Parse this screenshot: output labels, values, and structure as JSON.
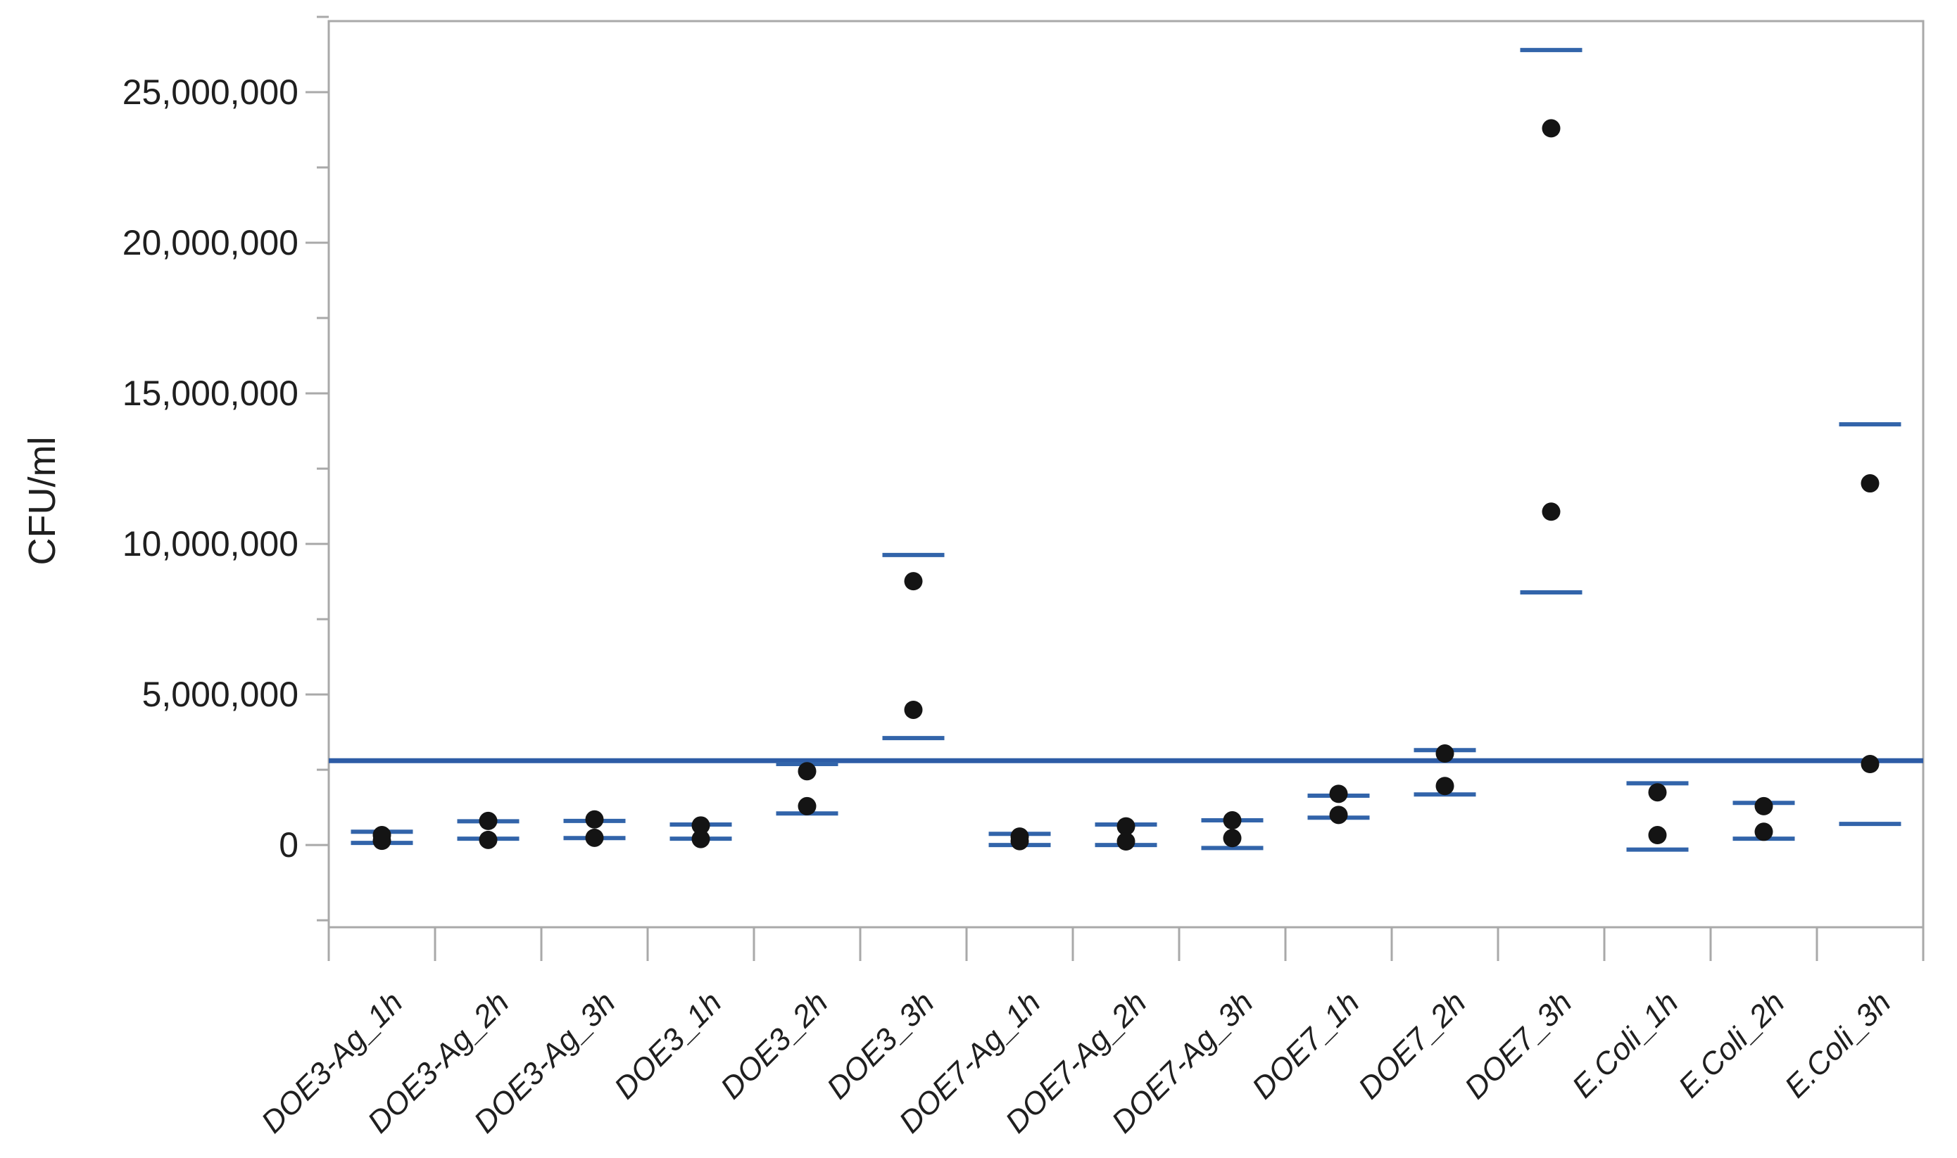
{
  "page": {
    "background": "#ffffff"
  },
  "colors": {
    "axis_gray": "#a9a9a9",
    "text": "#1f1f1f",
    "dot_black": "#141414",
    "ci_blue": "#3264aa",
    "mean_line_blue": "#2d5ca6",
    "plot_background": "#ffffff"
  },
  "chart_data": {
    "type": "scatter",
    "title": "",
    "xlabel": "",
    "ylabel": "CFU/ml",
    "grid": false,
    "legend_position": "none",
    "ylim": [
      -2730000,
      27360000
    ],
    "y_major_ticks": [
      0,
      5000000,
      10000000,
      15000000,
      20000000,
      25000000
    ],
    "y_major_tick_labels": [
      "0",
      "5,000,000",
      "10,000,000",
      "15,000,000",
      "20,000,000",
      "25,000,000"
    ],
    "y_minor_ticks": [
      -2500000,
      2500000,
      7500000,
      12500000,
      17500000,
      22500000,
      27500000
    ],
    "grand_mean": 2800000,
    "categories": [
      "DOE3-Ag_1h",
      "DOE3-Ag_2h",
      "DOE3-Ag_3h",
      "DOE3_1h",
      "DOE3_2h",
      "DOE3_3h",
      "DOE7-Ag_1h",
      "DOE7-Ag_2h",
      "DOE7-Ag_3h",
      "DOE7_1h",
      "DOE7_2h",
      "DOE7_3h",
      "E.Coli_1h",
      "E.Coli_2h",
      "E.Coli_3h"
    ],
    "series": [
      {
        "name": "DOE3-Ag_1h",
        "points": [
          330000,
          140000
        ],
        "ci_low": 70000,
        "ci_high": 440000
      },
      {
        "name": "DOE3-Ag_2h",
        "points": [
          800000,
          170000
        ],
        "ci_low": 210000,
        "ci_high": 790000
      },
      {
        "name": "DOE3-Ag_3h",
        "points": [
          850000,
          240000
        ],
        "ci_low": 230000,
        "ci_high": 800000
      },
      {
        "name": "DOE3_1h",
        "points": [
          650000,
          200000
        ],
        "ci_low": 210000,
        "ci_high": 680000
      },
      {
        "name": "DOE3_2h",
        "points": [
          2450000,
          1290000
        ],
        "ci_low": 1050000,
        "ci_high": 2690000
      },
      {
        "name": "DOE3_3h",
        "points": [
          8760000,
          4490000
        ],
        "ci_low": 3550000,
        "ci_high": 9630000
      },
      {
        "name": "DOE7-Ag_1h",
        "points": [
          280000,
          130000
        ],
        "ci_low": 0,
        "ci_high": 370000
      },
      {
        "name": "DOE7-Ag_2h",
        "points": [
          620000,
          120000
        ],
        "ci_low": 0,
        "ci_high": 680000
      },
      {
        "name": "DOE7-Ag_3h",
        "points": [
          820000,
          230000
        ],
        "ci_low": -100000,
        "ci_high": 820000
      },
      {
        "name": "DOE7_1h",
        "points": [
          1700000,
          1000000
        ],
        "ci_low": 910000,
        "ci_high": 1640000
      },
      {
        "name": "DOE7_2h",
        "points": [
          3040000,
          1960000
        ],
        "ci_low": 1680000,
        "ci_high": 3150000
      },
      {
        "name": "DOE7_3h",
        "points": [
          23800000,
          11070000
        ],
        "ci_low": 8390000,
        "ci_high": 26400000
      },
      {
        "name": "E.Coli_1h",
        "points": [
          1750000,
          330000
        ],
        "ci_low": -150000,
        "ci_high": 2050000
      },
      {
        "name": "E.Coli_2h",
        "points": [
          1290000,
          440000
        ],
        "ci_low": 210000,
        "ci_high": 1400000
      },
      {
        "name": "E.Coli_3h",
        "points": [
          12010000,
          2690000
        ],
        "ci_low": 700000,
        "ci_high": 13970000
      }
    ]
  }
}
